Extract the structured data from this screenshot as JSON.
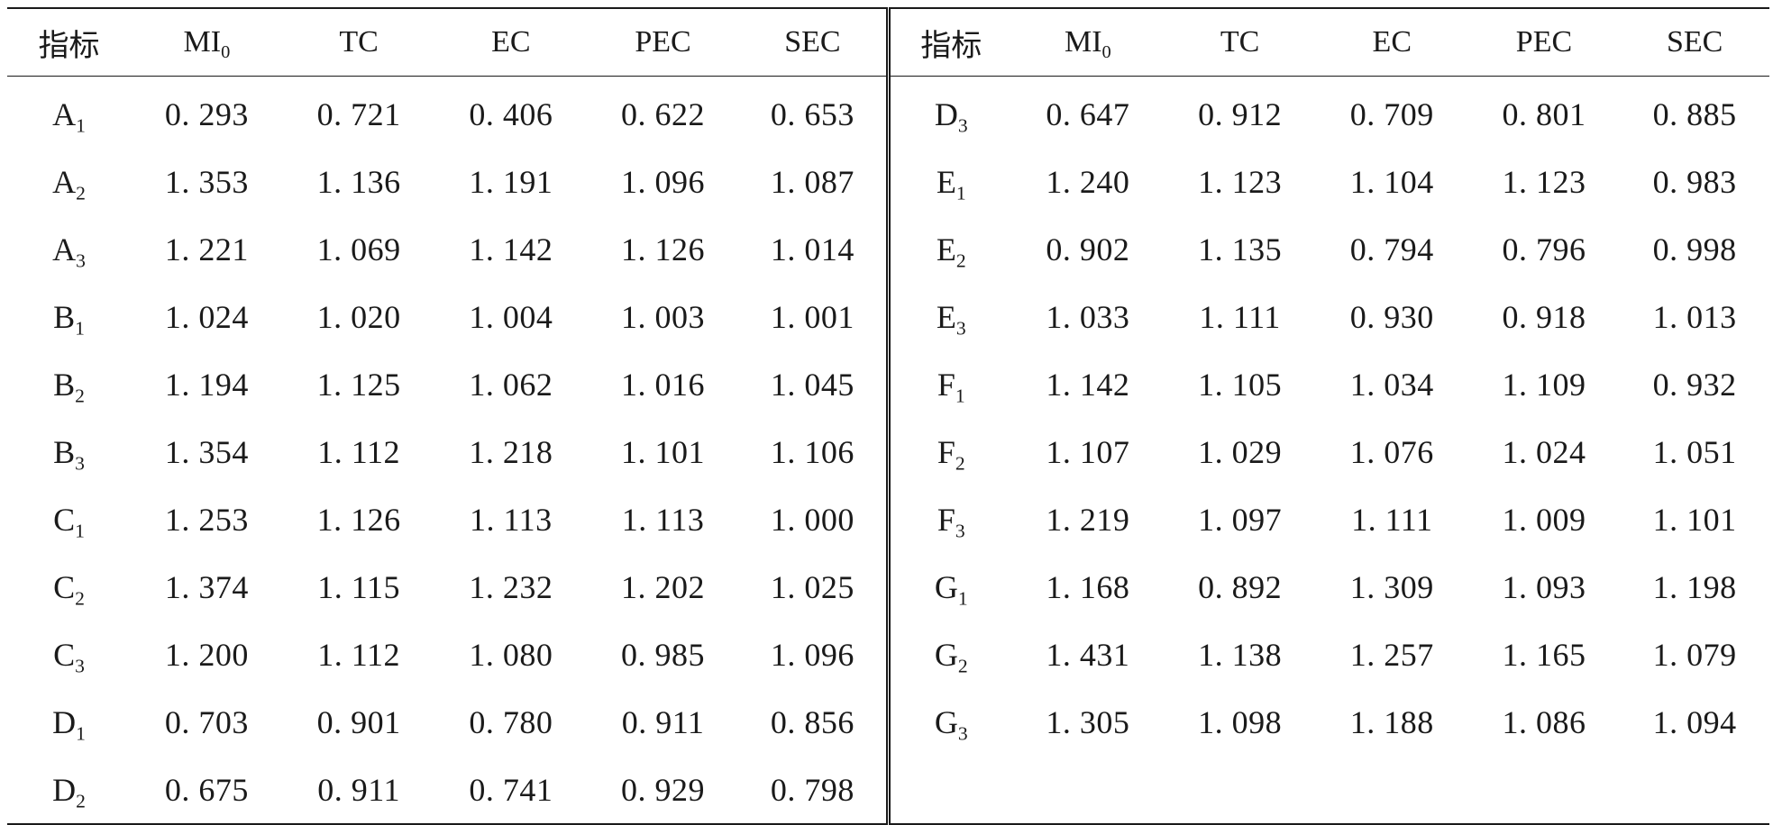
{
  "headers": [
    {
      "text": "指标",
      "sub": ""
    },
    {
      "text": "MI",
      "sub": "0"
    },
    {
      "text": "TC",
      "sub": ""
    },
    {
      "text": "EC",
      "sub": ""
    },
    {
      "text": "PEC",
      "sub": ""
    },
    {
      "text": "SEC",
      "sub": ""
    }
  ],
  "left_rows": [
    {
      "label": "A",
      "sub": "1",
      "values": [
        "0. 293",
        "0. 721",
        "0. 406",
        "0. 622",
        "0. 653"
      ]
    },
    {
      "label": "A",
      "sub": "2",
      "values": [
        "1. 353",
        "1. 136",
        "1. 191",
        "1. 096",
        "1. 087"
      ]
    },
    {
      "label": "A",
      "sub": "3",
      "values": [
        "1. 221",
        "1. 069",
        "1. 142",
        "1. 126",
        "1. 014"
      ]
    },
    {
      "label": "B",
      "sub": "1",
      "values": [
        "1. 024",
        "1. 020",
        "1. 004",
        "1. 003",
        "1. 001"
      ]
    },
    {
      "label": "B",
      "sub": "2",
      "values": [
        "1. 194",
        "1. 125",
        "1. 062",
        "1. 016",
        "1. 045"
      ]
    },
    {
      "label": "B",
      "sub": "3",
      "values": [
        "1. 354",
        "1. 112",
        "1. 218",
        "1. 101",
        "1. 106"
      ]
    },
    {
      "label": "C",
      "sub": "1",
      "values": [
        "1. 253",
        "1. 126",
        "1. 113",
        "1. 113",
        "1. 000"
      ]
    },
    {
      "label": "C",
      "sub": "2",
      "values": [
        "1. 374",
        "1. 115",
        "1. 232",
        "1. 202",
        "1. 025"
      ]
    },
    {
      "label": "C",
      "sub": "3",
      "values": [
        "1. 200",
        "1. 112",
        "1. 080",
        "0. 985",
        "1. 096"
      ]
    },
    {
      "label": "D",
      "sub": "1",
      "values": [
        "0. 703",
        "0. 901",
        "0. 780",
        "0. 911",
        "0. 856"
      ]
    },
    {
      "label": "D",
      "sub": "2",
      "values": [
        "0. 675",
        "0. 911",
        "0. 741",
        "0. 929",
        "0. 798"
      ]
    }
  ],
  "right_rows": [
    {
      "label": "D",
      "sub": "3",
      "values": [
        "0. 647",
        "0. 912",
        "0. 709",
        "0. 801",
        "0. 885"
      ]
    },
    {
      "label": "E",
      "sub": "1",
      "values": [
        "1. 240",
        "1. 123",
        "1. 104",
        "1. 123",
        "0. 983"
      ]
    },
    {
      "label": "E",
      "sub": "2",
      "values": [
        "0. 902",
        "1. 135",
        "0. 794",
        "0. 796",
        "0. 998"
      ]
    },
    {
      "label": "E",
      "sub": "3",
      "values": [
        "1. 033",
        "1. 111",
        "0. 930",
        "0. 918",
        "1. 013"
      ]
    },
    {
      "label": "F",
      "sub": "1",
      "values": [
        "1. 142",
        "1. 105",
        "1. 034",
        "1. 109",
        "0. 932"
      ]
    },
    {
      "label": "F",
      "sub": "2",
      "values": [
        "1. 107",
        "1. 029",
        "1. 076",
        "1. 024",
        "1. 051"
      ]
    },
    {
      "label": "F",
      "sub": "3",
      "values": [
        "1. 219",
        "1. 097",
        "1. 111",
        "1. 009",
        "1. 101"
      ]
    },
    {
      "label": "G",
      "sub": "1",
      "values": [
        "1. 168",
        "0. 892",
        "1. 309",
        "1. 093",
        "1. 198"
      ]
    },
    {
      "label": "G",
      "sub": "2",
      "values": [
        "1. 431",
        "1. 138",
        "1. 257",
        "1. 165",
        "1. 079"
      ]
    },
    {
      "label": "G",
      "sub": "3",
      "values": [
        "1. 305",
        "1. 098",
        "1. 188",
        "1. 086",
        "1. 094"
      ]
    }
  ]
}
